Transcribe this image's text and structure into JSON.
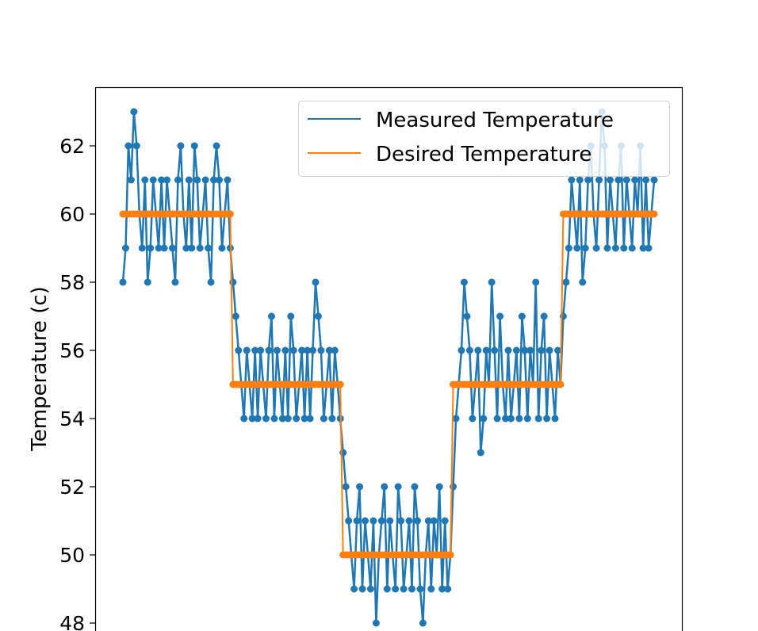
{
  "chart_data": {
    "type": "line",
    "title": "",
    "xlabel": "",
    "ylabel": "Temperature (c)",
    "ylim": [
      47.9,
      63.6
    ],
    "yticks": [
      "48",
      "50",
      "52",
      "54",
      "56",
      "58",
      "60",
      "62"
    ],
    "grid": false,
    "legend": "top-right",
    "markers": true,
    "series": [
      {
        "name": "Measured Temperature",
        "color": "#1f77b4",
        "values": [
          58,
          59,
          62,
          61,
          63,
          62,
          60,
          59,
          61,
          58,
          59,
          61,
          60,
          59,
          61,
          59,
          61,
          60,
          59,
          58,
          61,
          62,
          60,
          59,
          61,
          59,
          62,
          61,
          59,
          60,
          61,
          59,
          58,
          61,
          62,
          61,
          59,
          60,
          61,
          59,
          58,
          57,
          56,
          55,
          54,
          56,
          55,
          54,
          56,
          54,
          56,
          55,
          54,
          56,
          57,
          54,
          56,
          55,
          54,
          56,
          54,
          57,
          56,
          54,
          55,
          56,
          54,
          56,
          54,
          56,
          58,
          57,
          56,
          54,
          55,
          56,
          54,
          56,
          55,
          54,
          53,
          52,
          51,
          50,
          49,
          51,
          52,
          49,
          51,
          50,
          49,
          51,
          48,
          50,
          51,
          52,
          49,
          51,
          50,
          49,
          52,
          51,
          49,
          50,
          51,
          49,
          52,
          51,
          49,
          48,
          50,
          51,
          49,
          51,
          50,
          52,
          49,
          51,
          49,
          50,
          52,
          54,
          55,
          56,
          58,
          57,
          56,
          54,
          55,
          56,
          53,
          54,
          56,
          55,
          58,
          56,
          54,
          57,
          55,
          54,
          56,
          54,
          55,
          56,
          54,
          57,
          56,
          54,
          56,
          55,
          58,
          54,
          56,
          57,
          54,
          56,
          55,
          54,
          56,
          55,
          57,
          58,
          59,
          61,
          60,
          59,
          61,
          58,
          59,
          61,
          62,
          60,
          59,
          61,
          63,
          62,
          59,
          61,
          60,
          59,
          61,
          62,
          59,
          61,
          60,
          59,
          61,
          60,
          62,
          59,
          61,
          59,
          60,
          61
        ]
      },
      {
        "name": "Desired Temperature",
        "color": "#ff7f0e",
        "values": [
          60,
          60,
          60,
          60,
          60,
          60,
          60,
          60,
          60,
          60,
          60,
          60,
          60,
          60,
          60,
          60,
          60,
          60,
          60,
          60,
          60,
          60,
          60,
          60,
          60,
          60,
          60,
          60,
          60,
          60,
          60,
          60,
          60,
          60,
          60,
          60,
          60,
          60,
          60,
          60,
          55,
          55,
          55,
          55,
          55,
          55,
          55,
          55,
          55,
          55,
          55,
          55,
          55,
          55,
          55,
          55,
          55,
          55,
          55,
          55,
          55,
          55,
          55,
          55,
          55,
          55,
          55,
          55,
          55,
          55,
          55,
          55,
          55,
          55,
          55,
          55,
          55,
          55,
          55,
          55,
          50,
          50,
          50,
          50,
          50,
          50,
          50,
          50,
          50,
          50,
          50,
          50,
          50,
          50,
          50,
          50,
          50,
          50,
          50,
          50,
          50,
          50,
          50,
          50,
          50,
          50,
          50,
          50,
          50,
          50,
          50,
          50,
          50,
          50,
          50,
          50,
          50,
          50,
          50,
          50,
          55,
          55,
          55,
          55,
          55,
          55,
          55,
          55,
          55,
          55,
          55,
          55,
          55,
          55,
          55,
          55,
          55,
          55,
          55,
          55,
          55,
          55,
          55,
          55,
          55,
          55,
          55,
          55,
          55,
          55,
          55,
          55,
          55,
          55,
          55,
          55,
          55,
          55,
          55,
          55,
          60,
          60,
          60,
          60,
          60,
          60,
          60,
          60,
          60,
          60,
          60,
          60,
          60,
          60,
          60,
          60,
          60,
          60,
          60,
          60,
          60,
          60,
          60,
          60,
          60,
          60,
          60,
          60,
          60,
          60,
          60,
          60,
          60,
          60
        ]
      }
    ]
  }
}
